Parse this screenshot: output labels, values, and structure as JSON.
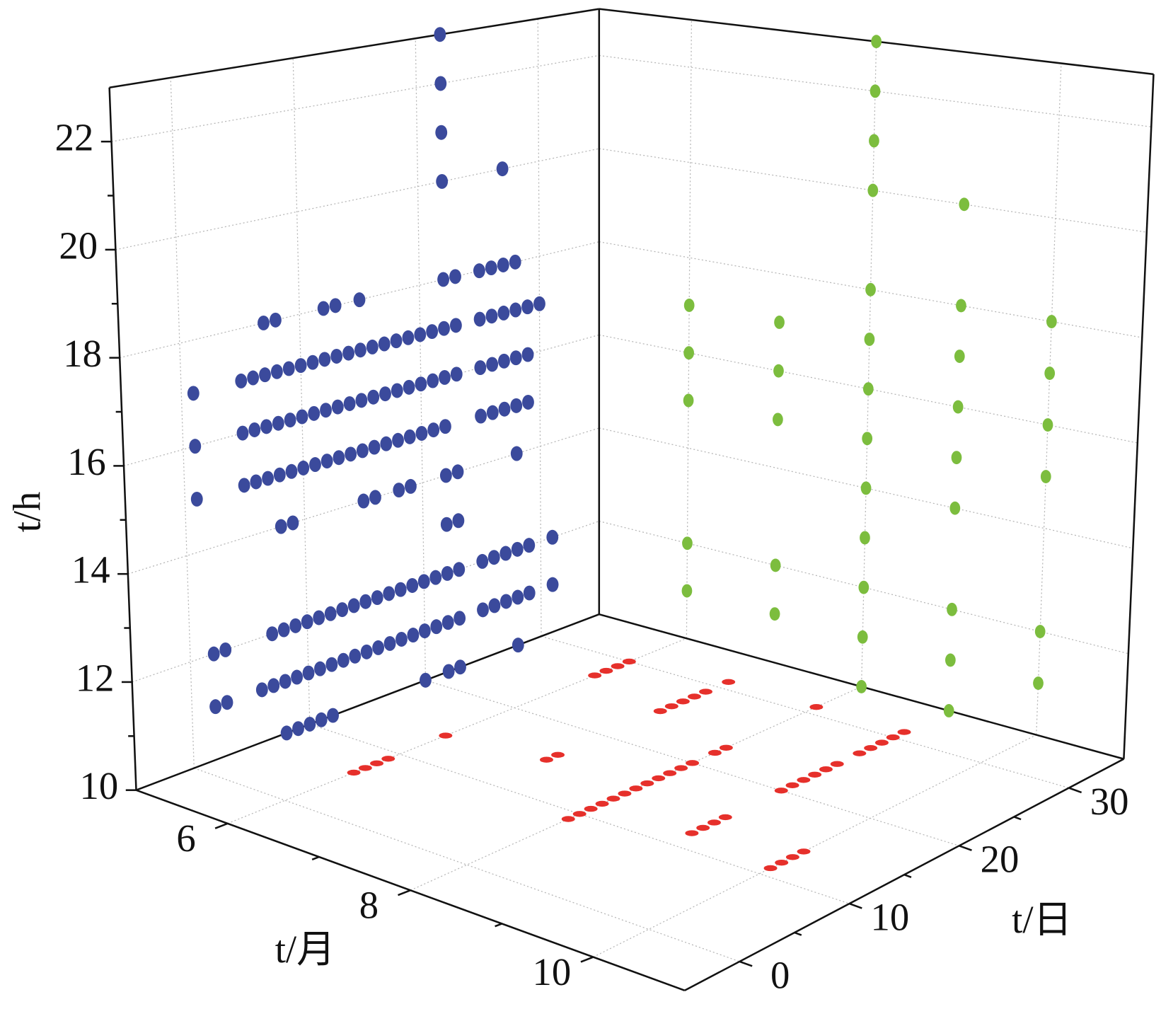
{
  "chart_data": {
    "type": "scatter3d",
    "xlabel": "t/月",
    "ylabel": "t/日",
    "zlabel": "t/h",
    "xlim": [
      5,
      11
    ],
    "xticks": [
      6,
      8,
      10
    ],
    "ylim": [
      -5,
      35
    ],
    "yticks": [
      0,
      10,
      20,
      30
    ],
    "zlim": [
      10,
      23
    ],
    "zticks": [
      10,
      12,
      14,
      16,
      18,
      20,
      22
    ],
    "grid": true,
    "series": [
      {
        "color": "#3b4a9c",
        "plane": "day-hour",
        "x": [
          22,
          22,
          22,
          22,
          27,
          7,
          8,
          12,
          13,
          15,
          22,
          23,
          25,
          26,
          27,
          28,
          1,
          5,
          6,
          7,
          8,
          9,
          10,
          11,
          12,
          13,
          14,
          15,
          16,
          17,
          18,
          19,
          20,
          21,
          22,
          23,
          25,
          26,
          27,
          28,
          29,
          30,
          1,
          5,
          6,
          7,
          8,
          9,
          10,
          11,
          12,
          13,
          14,
          15,
          16,
          17,
          18,
          19,
          20,
          21,
          22,
          23,
          25,
          26,
          27,
          28,
          29,
          1,
          5,
          6,
          7,
          8,
          9,
          10,
          11,
          12,
          13,
          14,
          15,
          16,
          17,
          18,
          19,
          20,
          21,
          22,
          25,
          26,
          27,
          28,
          29,
          8,
          9,
          15,
          16,
          18,
          19,
          22,
          23,
          28,
          22,
          23,
          2,
          3,
          7,
          8,
          9,
          10,
          11,
          12,
          13,
          14,
          15,
          16,
          17,
          18,
          19,
          20,
          21,
          22,
          23,
          25,
          26,
          27,
          28,
          29,
          31,
          2,
          3,
          6,
          7,
          8,
          9,
          10,
          11,
          12,
          13,
          14,
          15,
          16,
          17,
          18,
          19,
          20,
          21,
          22,
          23,
          25,
          26,
          27,
          28,
          29,
          31,
          8,
          9,
          10,
          11,
          12,
          20,
          22,
          23,
          28
        ],
        "values": [
          23,
          22,
          21,
          20,
          20,
          18,
          18,
          18,
          18,
          18,
          18,
          18,
          18,
          18,
          18,
          18,
          17,
          17,
          17,
          17,
          17,
          17,
          17,
          17,
          17,
          17,
          17,
          17,
          17,
          17,
          17,
          17,
          17,
          17,
          17,
          17,
          17,
          17,
          17,
          17,
          17,
          17,
          16,
          16,
          16,
          16,
          16,
          16,
          16,
          16,
          16,
          16,
          16,
          16,
          16,
          16,
          16,
          16,
          16,
          16,
          16,
          16,
          16,
          16,
          16,
          16,
          16,
          15,
          15,
          15,
          15,
          15,
          15,
          15,
          15,
          15,
          15,
          15,
          15,
          15,
          15,
          15,
          15,
          15,
          15,
          15,
          15,
          15,
          15,
          15,
          15,
          14,
          14,
          14,
          14,
          14,
          14,
          14,
          14,
          14,
          13,
          13,
          12,
          12,
          12,
          12,
          12,
          12,
          12,
          12,
          12,
          12,
          12,
          12,
          12,
          12,
          12,
          12,
          12,
          12,
          12,
          12,
          12,
          12,
          12,
          12,
          12,
          11,
          11,
          11,
          11,
          11,
          11,
          11,
          11,
          11,
          11,
          11,
          11,
          11,
          11,
          11,
          11,
          11,
          11,
          11,
          11,
          11,
          11,
          11,
          11,
          11,
          11,
          10,
          10,
          10,
          10,
          10,
          10,
          10,
          10,
          10
        ]
      },
      {
        "color": "#7cbd3e",
        "plane": "month-hour",
        "x": [
          6,
          6,
          6,
          6,
          6,
          7,
          7,
          7,
          7,
          7,
          8,
          8,
          8,
          8,
          8,
          8,
          8,
          8,
          8,
          8,
          8,
          8,
          8,
          9,
          9,
          9,
          9,
          9,
          9,
          9,
          9,
          9,
          10,
          10,
          10,
          10,
          10,
          10
        ],
        "values": [
          17,
          16,
          15,
          12,
          11,
          17,
          16,
          15,
          12,
          11,
          23,
          22,
          21,
          20,
          18,
          17,
          16,
          15,
          14,
          13,
          12,
          11,
          10,
          20,
          18,
          17,
          16,
          15,
          14,
          12,
          11,
          10,
          18,
          17,
          16,
          15,
          12,
          11
        ]
      },
      {
        "color": "#e6302b",
        "plane": "month-day",
        "x": [
          6,
          6,
          6,
          6,
          6,
          6,
          6,
          6,
          6,
          7,
          7,
          7,
          7,
          7,
          7,
          7,
          7,
          8,
          8,
          8,
          8,
          8,
          8,
          8,
          8,
          8,
          8,
          8,
          8,
          8,
          8,
          8,
          9,
          9,
          9,
          9,
          9,
          9,
          9,
          9,
          9,
          9,
          9,
          9,
          9,
          9,
          9,
          10,
          10,
          10,
          10
        ],
        "values": [
          6,
          7,
          8,
          9,
          14,
          27,
          28,
          29,
          30,
          15,
          16,
          25,
          26,
          27,
          28,
          29,
          31,
          9,
          10,
          11,
          12,
          13,
          14,
          15,
          16,
          17,
          18,
          19,
          20,
          22,
          23,
          31,
          12,
          13,
          14,
          15,
          20,
          21,
          22,
          23,
          24,
          25,
          27,
          28,
          29,
          30,
          31,
          11,
          12,
          13,
          14
        ]
      }
    ]
  }
}
